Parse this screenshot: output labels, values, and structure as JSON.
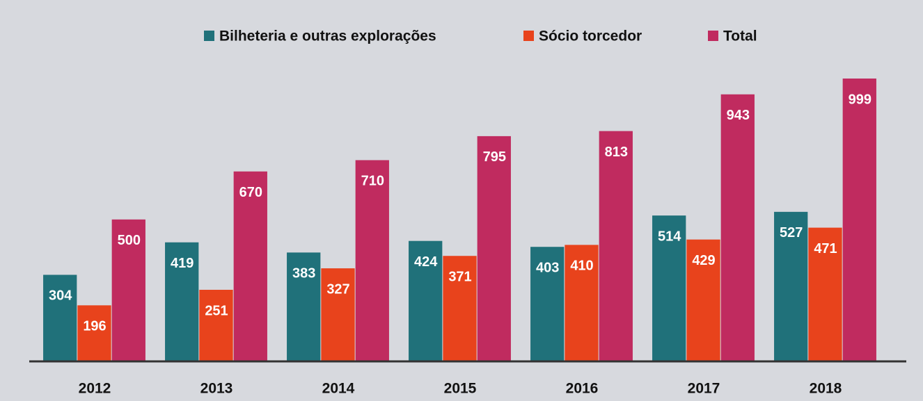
{
  "chart_data": {
    "type": "bar",
    "categories": [
      "2012",
      "2013",
      "2014",
      "2015",
      "2016",
      "2017",
      "2018"
    ],
    "series": [
      {
        "name": "Bilheteria e outras explorações",
        "color": "#20717a",
        "values": [
          304,
          419,
          383,
          424,
          403,
          514,
          527
        ]
      },
      {
        "name": "Sócio torcedor",
        "color": "#e8431c",
        "values": [
          196,
          251,
          327,
          371,
          410,
          429,
          471
        ]
      },
      {
        "name": "Total",
        "color": "#c02b5f",
        "values": [
          500,
          670,
          710,
          795,
          813,
          943,
          999
        ]
      }
    ],
    "ylim": [
      0,
      1000
    ],
    "legend": "top"
  }
}
